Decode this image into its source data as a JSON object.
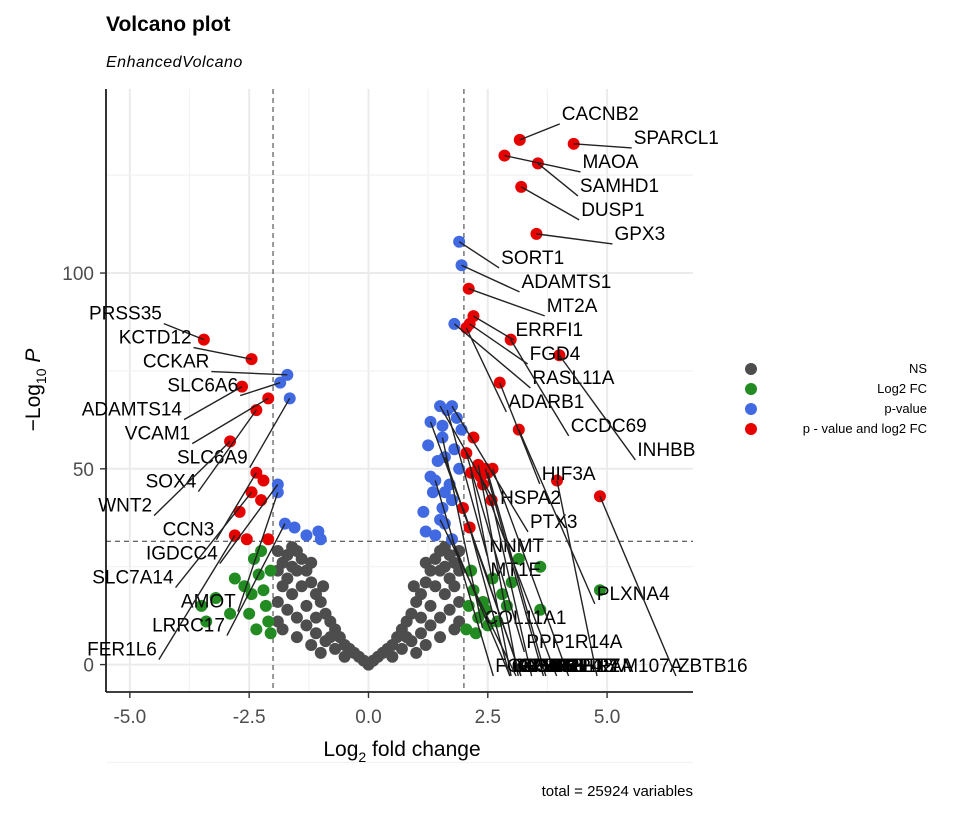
{
  "colors": {
    "ns": "#4d4d4d",
    "log2fc": "#228b22",
    "pvalue": "#4169e1",
    "both": "#e60000"
  },
  "chart_data": {
    "type": "scatter",
    "title": "Volcano plot",
    "subtitle": "EnhancedVolcano",
    "xlabel": "Log2 fold change",
    "ylabel": "-Log10 P",
    "caption": "total = 25924 variables",
    "xlim": [
      -5.5,
      6.8
    ],
    "ylim": [
      -7,
      147
    ],
    "xticks": [
      "-5.0",
      "-2.5",
      "0.0",
      "2.5",
      "5.0"
    ],
    "xtick_values": [
      -5,
      -2.5,
      0,
      2.5,
      5
    ],
    "yticks": [
      "0",
      "50",
      "100"
    ],
    "ytick_values": [
      0,
      50,
      100
    ],
    "fc_cutoff": 2,
    "p_cutoff_log10": 31.5,
    "grid": true,
    "legend_position": "right",
    "legend": [
      {
        "key": "ns",
        "label": "NS"
      },
      {
        "key": "log2fc",
        "label": "Log2 FC"
      },
      {
        "key": "pvalue",
        "label": "p-value"
      },
      {
        "key": "both",
        "label": "p - value and log2 FC"
      }
    ],
    "series": [
      {
        "name": "p - value and log2 FC",
        "points": [
          {
            "x": 3.17,
            "y": 134,
            "label": "CACNB2"
          },
          {
            "x": 4.3,
            "y": 133,
            "label": "SPARCL1"
          },
          {
            "x": 3.55,
            "y": 128,
            "label": "SAMHD1"
          },
          {
            "x": 2.85,
            "y": 130,
            "label": "MAOA"
          },
          {
            "x": 3.2,
            "y": 122,
            "label": "DUSP1"
          },
          {
            "x": 3.52,
            "y": 110,
            "label": "GPX3"
          },
          {
            "x": 2.1,
            "y": 96,
            "label": "MT2A"
          },
          {
            "x": 2.2,
            "y": 89,
            "label": "ERRFI1"
          },
          {
            "x": 2.12,
            "y": 87,
            "label": "FGD4"
          },
          {
            "x": 2.05,
            "y": 86,
            "label": "ADARB1"
          },
          {
            "x": 2.98,
            "y": 83,
            "label": "CCDC69"
          },
          {
            "x": 4.0,
            "y": 79,
            "label": "INHBB"
          },
          {
            "x": 2.75,
            "y": 72,
            "label": "HIF3A"
          },
          {
            "x": 3.15,
            "y": 60,
            "label": "PLXNA4"
          },
          {
            "x": 2.3,
            "y": 51,
            "label": "CRISPLD2"
          },
          {
            "x": 2.45,
            "y": 50,
            "label": "TIMP4"
          },
          {
            "x": 2.6,
            "y": 50,
            "label": "PER1"
          },
          {
            "x": 2.35,
            "y": 48,
            "label": "KLF15"
          },
          {
            "x": 2.15,
            "y": 49,
            "label": "KCNK6"
          },
          {
            "x": 2.5,
            "y": 49,
            "label": "METTL7A"
          },
          {
            "x": 3.95,
            "y": 47,
            "label": "FAM107A"
          },
          {
            "x": 4.85,
            "y": 43,
            "label": "ZBTB16"
          },
          {
            "x": 2.58,
            "y": 42,
            "label": "GGT5"
          },
          {
            "x": 2.05,
            "y": 54,
            "label": "PPP1R14A"
          },
          {
            "x": 1.98,
            "y": 40,
            "label": "USP53"
          },
          {
            "x": 2.12,
            "y": 35,
            "label": "GPM6B"
          },
          {
            "x": -3.45,
            "y": 83,
            "label": "PRSS35"
          },
          {
            "x": -2.45,
            "y": 78,
            "label": "KCTD12"
          },
          {
            "x": -2.65,
            "y": 71,
            "label": "ADAMTS14"
          },
          {
            "x": -2.1,
            "y": 68,
            "label": "VCAM1"
          },
          {
            "x": -2.35,
            "y": 65,
            "label": "SOX4"
          },
          {
            "x": -2.9,
            "y": 57,
            "label": "WNT2"
          },
          {
            "x": -2.35,
            "y": 49,
            "label": "CCN3"
          },
          {
            "x": -2.45,
            "y": 44,
            "label": "SLC7A14"
          },
          {
            "x": -2.2,
            "y": 47,
            "label": ""
          },
          {
            "x": -2.25,
            "y": 42,
            "label": ""
          },
          {
            "x": -2.7,
            "y": 39,
            "label": ""
          },
          {
            "x": -2.8,
            "y": 33,
            "label": "FER1L6"
          },
          {
            "x": -2.55,
            "y": 32,
            "label": ""
          },
          {
            "x": -2.1,
            "y": 32,
            "label": ""
          },
          {
            "x": 2.4,
            "y": 46,
            "label": ""
          },
          {
            "x": 2.2,
            "y": 58,
            "label": ""
          }
        ]
      },
      {
        "name": "p-value",
        "points": [
          {
            "x": 1.9,
            "y": 108,
            "label": "SORT1"
          },
          {
            "x": 1.95,
            "y": 102,
            "label": "ADAMTS1"
          },
          {
            "x": 1.8,
            "y": 87,
            "label": "RASL11A"
          },
          {
            "x": 1.65,
            "y": 65,
            "label": "NNMT"
          },
          {
            "x": 1.5,
            "y": 66,
            "label": "HSPA2"
          },
          {
            "x": 1.75,
            "y": 66,
            "label": "PTX3"
          },
          {
            "x": 1.3,
            "y": 62,
            "label": "MT1E"
          },
          {
            "x": 1.55,
            "y": 58,
            "label": "COL11A1"
          },
          {
            "x": 1.6,
            "y": 53,
            "label": "IMPA2"
          },
          {
            "x": 1.4,
            "y": 47,
            "label": "FOXO1"
          },
          {
            "x": 1.5,
            "y": 37,
            "label": "IRS2"
          },
          {
            "x": 1.75,
            "y": 32,
            "label": "IGFBP2"
          },
          {
            "x": -1.7,
            "y": 74,
            "label": "CCKAR"
          },
          {
            "x": -1.85,
            "y": 72,
            "label": "SLC6A6"
          },
          {
            "x": -1.65,
            "y": 68,
            "label": "SLC6A9"
          },
          {
            "x": -1.9,
            "y": 46,
            "label": "IGDCC4"
          },
          {
            "x": -1.9,
            "y": 44,
            "label": "AMOT"
          },
          {
            "x": -1.75,
            "y": 36,
            "label": "LRRC17"
          },
          {
            "x": -1.55,
            "y": 35,
            "label": ""
          },
          {
            "x": -1.3,
            "y": 33,
            "label": ""
          },
          {
            "x": -1.05,
            "y": 34,
            "label": ""
          },
          {
            "x": -1.0,
            "y": 32,
            "label": ""
          },
          {
            "x": 1.2,
            "y": 34,
            "label": ""
          },
          {
            "x": 1.4,
            "y": 33,
            "label": ""
          },
          {
            "x": 1.6,
            "y": 36,
            "label": ""
          },
          {
            "x": 1.55,
            "y": 40,
            "label": ""
          },
          {
            "x": 1.35,
            "y": 44,
            "label": ""
          },
          {
            "x": 1.7,
            "y": 46,
            "label": ""
          },
          {
            "x": 1.9,
            "y": 50,
            "label": ""
          },
          {
            "x": 1.45,
            "y": 52,
            "label": ""
          },
          {
            "x": 1.8,
            "y": 55,
            "label": ""
          },
          {
            "x": 1.25,
            "y": 56,
            "label": ""
          },
          {
            "x": 1.95,
            "y": 60,
            "label": ""
          },
          {
            "x": 1.55,
            "y": 61,
            "label": ""
          },
          {
            "x": 1.85,
            "y": 63,
            "label": ""
          },
          {
            "x": 1.15,
            "y": 39,
            "label": ""
          },
          {
            "x": 1.75,
            "y": 42,
            "label": ""
          },
          {
            "x": 1.3,
            "y": 48,
            "label": ""
          },
          {
            "x": 1.6,
            "y": 44,
            "label": ""
          }
        ]
      },
      {
        "name": "Log2 FC",
        "points": [
          {
            "x": 3.6,
            "y": 25,
            "label": ""
          },
          {
            "x": 3.15,
            "y": 27,
            "label": ""
          },
          {
            "x": 4.85,
            "y": 19,
            "label": ""
          },
          {
            "x": 3.6,
            "y": 14,
            "label": ""
          },
          {
            "x": 3.0,
            "y": 21,
            "label": ""
          },
          {
            "x": 2.6,
            "y": 22,
            "label": ""
          },
          {
            "x": 2.8,
            "y": 18,
            "label": ""
          },
          {
            "x": 2.4,
            "y": 16,
            "label": ""
          },
          {
            "x": 2.2,
            "y": 19,
            "label": ""
          },
          {
            "x": 2.1,
            "y": 15,
            "label": ""
          },
          {
            "x": 2.3,
            "y": 12,
            "label": ""
          },
          {
            "x": 2.5,
            "y": 10,
            "label": ""
          },
          {
            "x": 2.7,
            "y": 11,
            "label": ""
          },
          {
            "x": 2.05,
            "y": 9,
            "label": ""
          },
          {
            "x": 2.15,
            "y": 24,
            "label": ""
          },
          {
            "x": 2.45,
            "y": 14,
            "label": ""
          },
          {
            "x": 2.9,
            "y": 15,
            "label": ""
          },
          {
            "x": 2.25,
            "y": 8,
            "label": ""
          },
          {
            "x": -3.5,
            "y": 15,
            "label": ""
          },
          {
            "x": -3.4,
            "y": 11,
            "label": ""
          },
          {
            "x": -3.2,
            "y": 17,
            "label": ""
          },
          {
            "x": -2.9,
            "y": 13,
            "label": ""
          },
          {
            "x": -2.6,
            "y": 20,
            "label": ""
          },
          {
            "x": -2.4,
            "y": 27,
            "label": ""
          },
          {
            "x": -2.3,
            "y": 23,
            "label": ""
          },
          {
            "x": -2.2,
            "y": 19,
            "label": ""
          },
          {
            "x": -2.15,
            "y": 15,
            "label": ""
          },
          {
            "x": -2.1,
            "y": 11,
            "label": ""
          },
          {
            "x": -2.5,
            "y": 13,
            "label": ""
          },
          {
            "x": -2.35,
            "y": 9,
            "label": ""
          },
          {
            "x": -2.05,
            "y": 24,
            "label": ""
          },
          {
            "x": -2.25,
            "y": 29,
            "label": ""
          },
          {
            "x": -2.45,
            "y": 18,
            "label": ""
          },
          {
            "x": -2.8,
            "y": 22,
            "label": ""
          },
          {
            "x": -2.05,
            "y": 8,
            "label": ""
          }
        ]
      }
    ],
    "ns_points": [
      [
        0.0,
        0
      ],
      [
        0.1,
        1
      ],
      [
        -0.1,
        1
      ],
      [
        0.2,
        2
      ],
      [
        -0.2,
        2
      ],
      [
        0.3,
        3
      ],
      [
        -0.3,
        3
      ],
      [
        0.4,
        4
      ],
      [
        -0.4,
        4
      ],
      [
        0.5,
        5
      ],
      [
        -0.5,
        5
      ],
      [
        0.6,
        7
      ],
      [
        -0.6,
        7
      ],
      [
        0.7,
        9
      ],
      [
        -0.7,
        9
      ],
      [
        0.8,
        11
      ],
      [
        -0.8,
        11
      ],
      [
        0.9,
        13
      ],
      [
        -0.9,
        13
      ],
      [
        1.0,
        16
      ],
      [
        -1.0,
        16
      ],
      [
        1.1,
        18
      ],
      [
        -1.1,
        18
      ],
      [
        1.2,
        21
      ],
      [
        -1.2,
        21
      ],
      [
        1.3,
        24
      ],
      [
        -1.3,
        24
      ],
      [
        1.4,
        27
      ],
      [
        -1.4,
        27
      ],
      [
        1.5,
        29
      ],
      [
        -1.5,
        29
      ],
      [
        1.6,
        30
      ],
      [
        -1.6,
        30
      ],
      [
        1.7,
        28
      ],
      [
        -1.7,
        28
      ],
      [
        1.8,
        26
      ],
      [
        -1.8,
        26
      ],
      [
        1.9,
        24
      ],
      [
        -1.9,
        24
      ],
      [
        0.5,
        2
      ],
      [
        -0.5,
        2
      ],
      [
        0.7,
        4
      ],
      [
        -0.7,
        4
      ],
      [
        0.9,
        6
      ],
      [
        -0.9,
        6
      ],
      [
        1.1,
        8
      ],
      [
        -1.1,
        8
      ],
      [
        1.3,
        10
      ],
      [
        -1.3,
        10
      ],
      [
        1.5,
        12
      ],
      [
        -1.5,
        12
      ],
      [
        1.7,
        14
      ],
      [
        -1.7,
        14
      ],
      [
        1.9,
        16
      ],
      [
        -1.9,
        16
      ],
      [
        1.2,
        5
      ],
      [
        -1.2,
        5
      ],
      [
        1.5,
        7
      ],
      [
        -1.5,
        7
      ],
      [
        1.8,
        9
      ],
      [
        -1.8,
        9
      ],
      [
        1.0,
        3
      ],
      [
        -1.0,
        3
      ],
      [
        1.6,
        18
      ],
      [
        -1.6,
        18
      ],
      [
        1.4,
        20
      ],
      [
        -1.4,
        20
      ],
      [
        1.8,
        20
      ],
      [
        -1.8,
        20
      ],
      [
        1.9,
        11
      ],
      [
        -1.9,
        11
      ],
      [
        1.3,
        15
      ],
      [
        -1.3,
        15
      ],
      [
        1.1,
        12
      ],
      [
        -1.1,
        12
      ],
      [
        0.8,
        7
      ],
      [
        -0.8,
        7
      ],
      [
        1.7,
        22
      ],
      [
        -1.7,
        22
      ],
      [
        1.5,
        24
      ],
      [
        -1.5,
        24
      ],
      [
        1.9,
        29
      ],
      [
        -1.9,
        29
      ],
      [
        1.6,
        25
      ],
      [
        -1.6,
        25
      ],
      [
        1.2,
        26
      ],
      [
        -1.2,
        26
      ],
      [
        0.95,
        20
      ],
      [
        -0.95,
        20
      ]
    ]
  }
}
